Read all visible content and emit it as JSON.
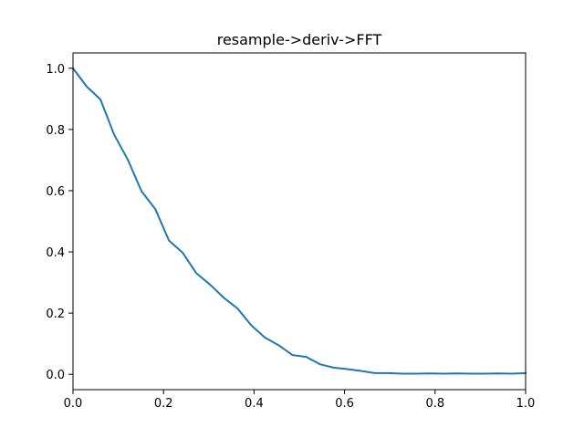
{
  "chart_data": {
    "type": "line",
    "title": "resample->deriv->FFT",
    "xlabel": "",
    "ylabel": "",
    "xlim": [
      0,
      1
    ],
    "ylim": [
      -0.05,
      1.05
    ],
    "grid": false,
    "xticks": [
      0.0,
      0.2,
      0.4,
      0.6,
      0.8,
      1.0
    ],
    "xtick_labels": [
      "0.0",
      "0.2",
      "0.4",
      "0.6",
      "0.8",
      "1.0"
    ],
    "yticks": [
      0.0,
      0.2,
      0.4,
      0.6,
      0.8,
      1.0
    ],
    "ytick_labels": [
      "0.0",
      "0.2",
      "0.4",
      "0.6",
      "0.8",
      "1.0"
    ],
    "series": [
      {
        "color": "#1f77b4",
        "x": [
          0.0,
          0.0303,
          0.0606,
          0.0909,
          0.1212,
          0.1515,
          0.1818,
          0.2121,
          0.2424,
          0.2727,
          0.303,
          0.3333,
          0.3636,
          0.3939,
          0.4242,
          0.4545,
          0.4848,
          0.5152,
          0.5455,
          0.5758,
          0.6061,
          0.6364,
          0.6667,
          0.697,
          0.7273,
          0.7576,
          0.7879,
          0.8182,
          0.8485,
          0.8788,
          0.9091,
          0.9394,
          0.9697,
          1.0
        ],
        "y": [
          1.0,
          0.94,
          0.898,
          0.783,
          0.701,
          0.598,
          0.54,
          0.437,
          0.397,
          0.33,
          0.293,
          0.25,
          0.215,
          0.16,
          0.12,
          0.095,
          0.063,
          0.057,
          0.033,
          0.022,
          0.017,
          0.011,
          0.004,
          0.004,
          0.002,
          0.002,
          0.003,
          0.002,
          0.003,
          0.002,
          0.002,
          0.003,
          0.002,
          0.004
        ]
      }
    ]
  }
}
